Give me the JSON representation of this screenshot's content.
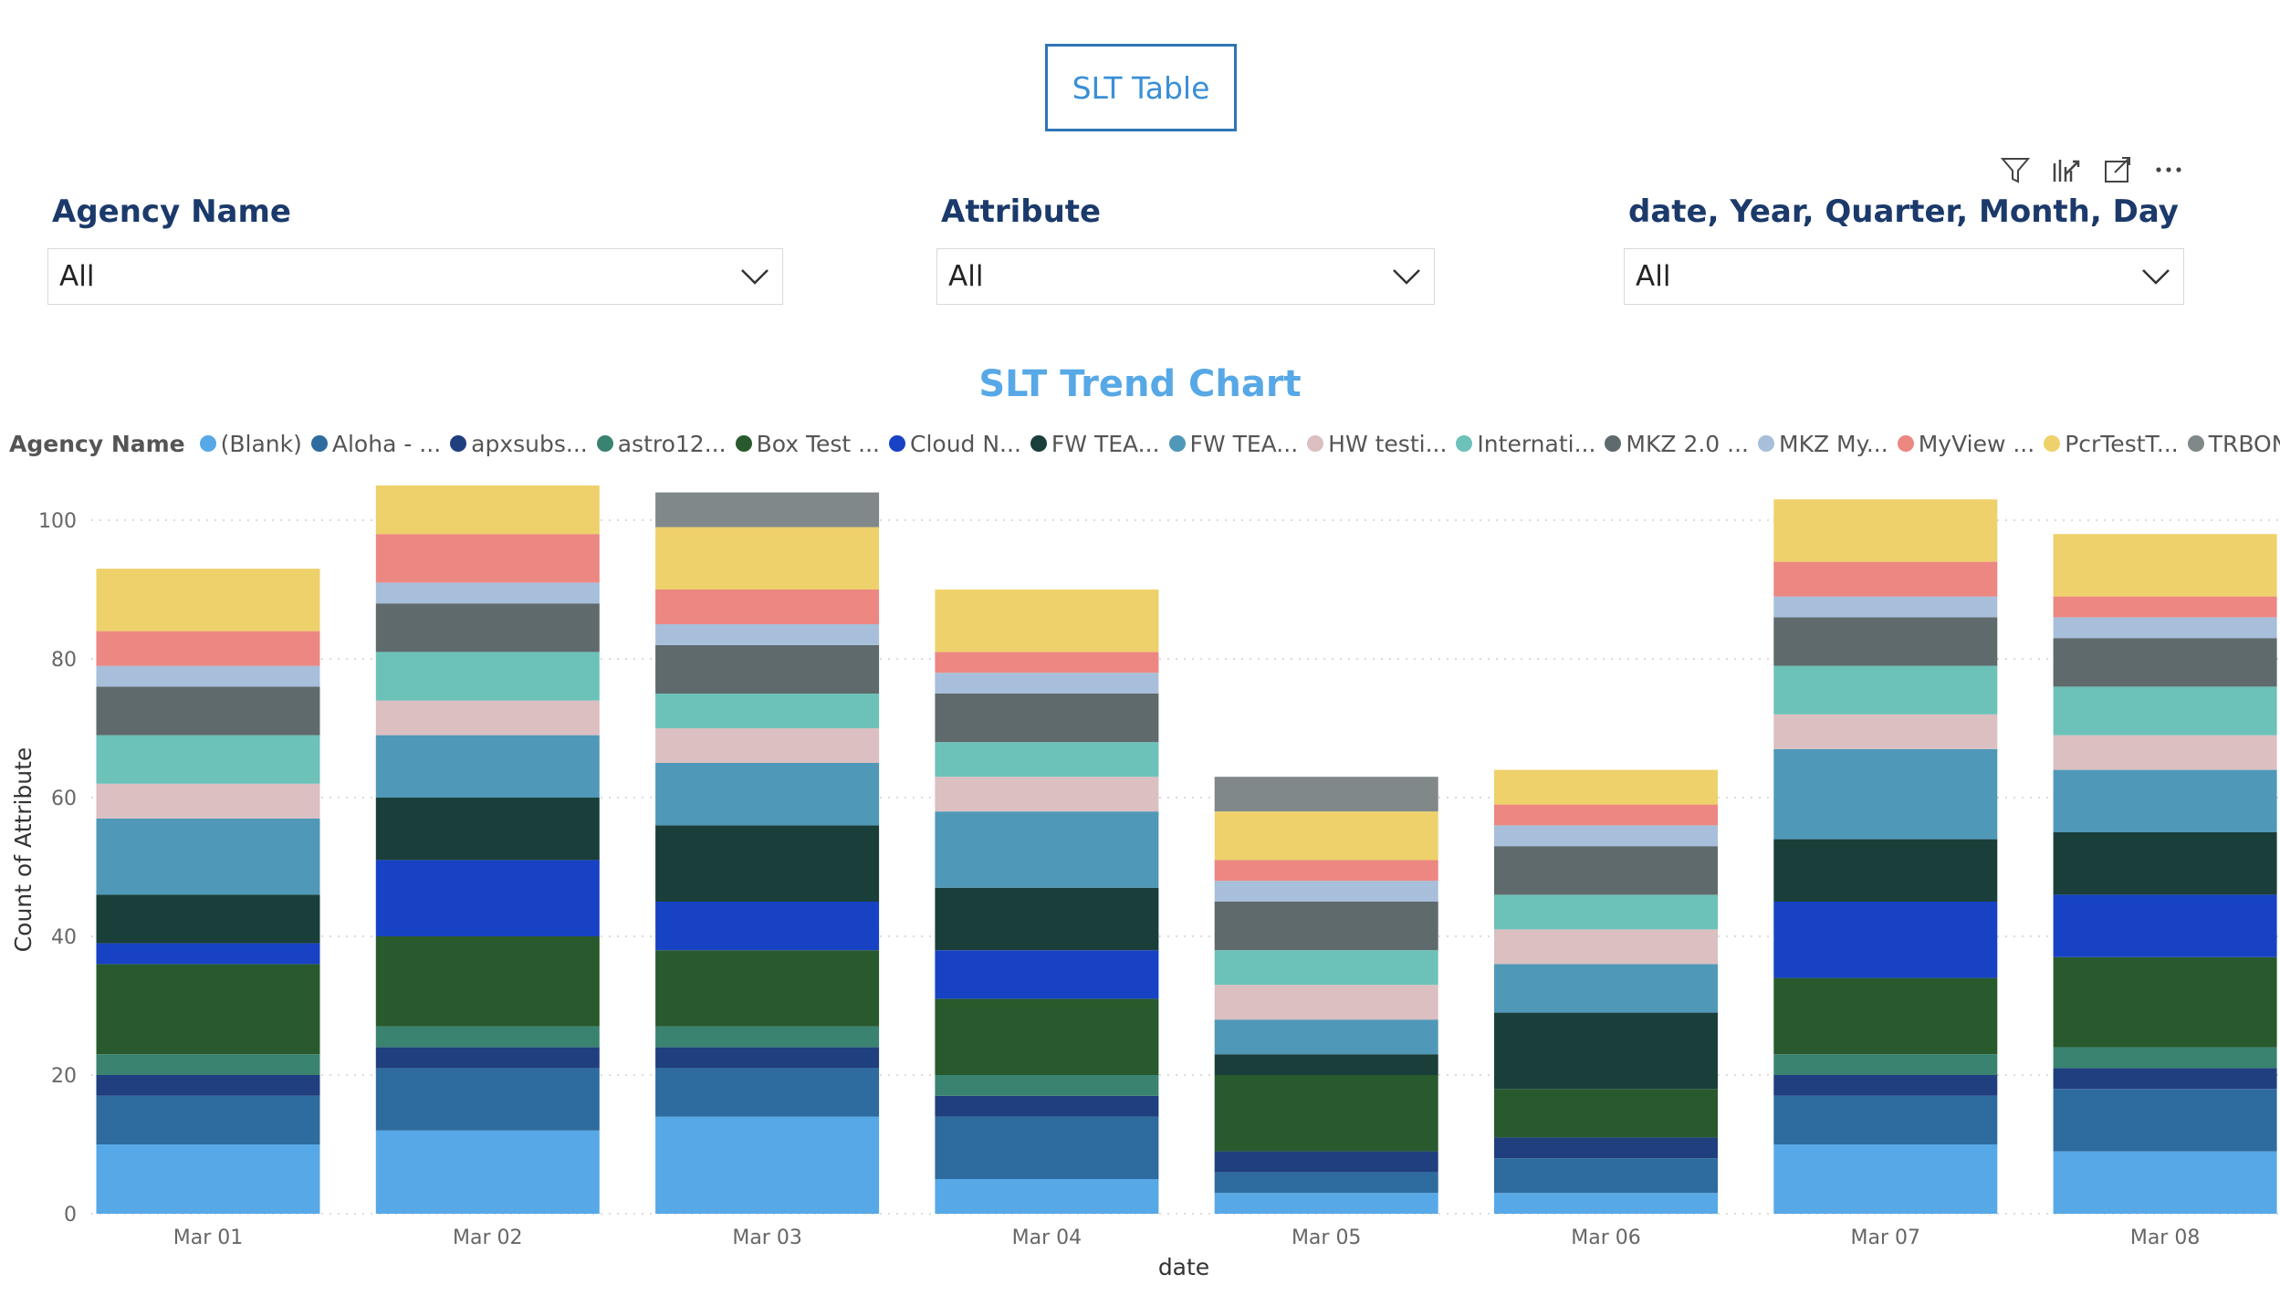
{
  "button": {
    "label": "SLT Table"
  },
  "toolbar": {
    "icons": [
      "filter-icon",
      "drill-icon",
      "focus-mode-icon",
      "more-options-icon"
    ]
  },
  "slicers": [
    {
      "title": "Agency Name",
      "value": "All"
    },
    {
      "title": "Attribute",
      "value": "All"
    },
    {
      "title": "date, Year, Quarter, Month, Day",
      "value": "All"
    }
  ],
  "chart_data": {
    "type": "bar",
    "stacked": true,
    "title": "SLT Trend Chart",
    "xlabel": "date",
    "ylabel": "Count of Attribute",
    "ylim": [
      0,
      105
    ],
    "yticks": [
      0,
      20,
      40,
      60,
      80,
      100
    ],
    "grid": true,
    "legend_title": "Agency Name",
    "legend_position": "top",
    "categories": [
      "Mar 01",
      "Mar 02",
      "Mar 03",
      "Mar 04",
      "Mar 05",
      "Mar 06",
      "Mar 07",
      "Mar 08"
    ],
    "series": [
      {
        "name": "(Blank)",
        "color": "#57a8e6",
        "values": [
          10,
          12,
          14,
          5,
          3,
          3,
          10,
          9
        ]
      },
      {
        "name": "Aloha - ...",
        "color": "#2e6b9e",
        "values": [
          7,
          9,
          7,
          9,
          3,
          5,
          7,
          9
        ]
      },
      {
        "name": "apxsubs...",
        "color": "#1f3f7f",
        "values": [
          3,
          3,
          3,
          3,
          3,
          3,
          3,
          3
        ]
      },
      {
        "name": "astro12...",
        "color": "#3a8370",
        "values": [
          3,
          3,
          3,
          3,
          0,
          0,
          3,
          3
        ]
      },
      {
        "name": "Box Test ...",
        "color": "#285a2e",
        "values": [
          13,
          13,
          11,
          11,
          11,
          7,
          11,
          13
        ]
      },
      {
        "name": "Cloud N...",
        "color": "#1742c4",
        "values": [
          3,
          11,
          7,
          7,
          0,
          0,
          11,
          9
        ]
      },
      {
        "name": "FW TEA...",
        "color": "#1a3f3b",
        "values": [
          7,
          9,
          11,
          9,
          3,
          11,
          9,
          9
        ]
      },
      {
        "name": "FW TEA...",
        "color": "#4f98b8",
        "values": [
          11,
          9,
          9,
          11,
          5,
          7,
          13,
          9
        ]
      },
      {
        "name": "HW testi...",
        "color": "#dbbfc1",
        "values": [
          5,
          5,
          5,
          5,
          5,
          5,
          5,
          5
        ]
      },
      {
        "name": "Internati...",
        "color": "#6cc2b8",
        "values": [
          7,
          7,
          5,
          5,
          5,
          5,
          7,
          7
        ]
      },
      {
        "name": "MKZ 2.0 ...",
        "color": "#5f6a6d",
        "values": [
          7,
          7,
          7,
          7,
          7,
          7,
          7,
          7
        ]
      },
      {
        "name": "MKZ My...",
        "color": "#a7bfda",
        "values": [
          3,
          3,
          3,
          3,
          3,
          3,
          3,
          3
        ]
      },
      {
        "name": "MyView ...",
        "color": "#ec8782",
        "values": [
          5,
          7,
          5,
          3,
          3,
          3,
          5,
          3
        ]
      },
      {
        "name": "PcrTestT...",
        "color": "#eed16b",
        "values": [
          9,
          7,
          9,
          9,
          7,
          5,
          9,
          9
        ]
      },
      {
        "name": "TRBONe...",
        "color": "#808889",
        "values": [
          0,
          0,
          5,
          0,
          5,
          0,
          0,
          0
        ]
      }
    ]
  }
}
